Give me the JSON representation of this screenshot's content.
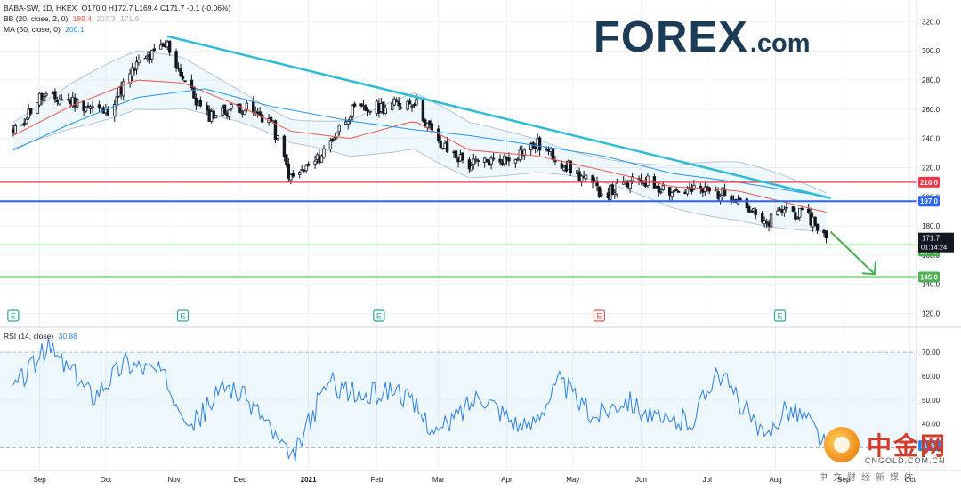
{
  "legend": {
    "symbol": "BABA-SW, 1D, HKEX",
    "ohlc": "O170.0 H172.7 L169.4 C171.7 -0.1 (-0.06%)",
    "bb_label": "BB (20, close, 2, 0)",
    "bb_values": [
      "189.4",
      "207.3",
      "171.6"
    ],
    "ma_label": "MA (50, close, 0)",
    "ma_value": "200.1",
    "rsi_label": "RSI (14, close)",
    "rsi_value": "30.88"
  },
  "logo": {
    "brand": "FOREX",
    "suffix": ".com"
  },
  "watermark": {
    "name": "中金网",
    "domain": "CNGOLD.COM.CN",
    "tagline": "中文财经新媒体"
  },
  "colors": {
    "up": "#26a69a",
    "down": "#ef5350",
    "candle_body": "#131722",
    "trendline": "#2bbcd8",
    "support_red": "#f23645",
    "support_blue": "#2962ff",
    "target_green": "#4caf50",
    "bb_basis": "#f05545",
    "ma": "#2196f3",
    "rsi_line": "#2a82e4"
  },
  "price_axis": {
    "ticks": [
      "320.0",
      "300.0",
      "280.0",
      "260.0",
      "240.0",
      "220.0",
      "200.0",
      "180.0",
      "160.0",
      "140.0",
      "120.0"
    ],
    "range": [
      113,
      330
    ]
  },
  "rsi_axis": {
    "ticks": [
      "70.00",
      "60.00",
      "50.00",
      "40.00",
      "30.00"
    ],
    "range": [
      22,
      76
    ]
  },
  "time_axis": [
    "Sep",
    "Oct",
    "Nov",
    "Dec",
    "2021",
    "Feb",
    "Mar",
    "Apr",
    "May",
    "Jun",
    "Jul",
    "Aug",
    "Sep",
    "Oct"
  ],
  "labels": {
    "resistance_210": "210.0",
    "resistance_197": "197.0",
    "last_price": "171.7",
    "countdown": "01:14:24",
    "target_167": "167.0",
    "target_145": "145.0"
  },
  "events": [
    "E",
    "E",
    "E",
    "E",
    "E"
  ],
  "chart_data": {
    "type": "line",
    "title": "BABA-SW, 1D, HKEX",
    "xlabel": "",
    "ylabel": "",
    "ylim": [
      113,
      330
    ],
    "series": [
      {
        "name": "BABA-SW close",
        "x": [
          "2020-08-20",
          "2020-09-01",
          "2020-09-15",
          "2020-10-01",
          "2020-10-15",
          "2020-10-29",
          "2020-11-05",
          "2020-11-15",
          "2020-12-01",
          "2020-12-15",
          "2020-12-24",
          "2021-01-05",
          "2021-01-20",
          "2021-02-05",
          "2021-02-18",
          "2021-03-01",
          "2021-03-15",
          "2021-04-01",
          "2021-04-15",
          "2021-05-01",
          "2021-05-15",
          "2021-06-01",
          "2021-06-15",
          "2021-07-01",
          "2021-07-15",
          "2021-07-27",
          "2021-08-05",
          "2021-08-18",
          "2021-08-24"
        ],
        "values": [
          243,
          268,
          266,
          258,
          290,
          304,
          282,
          255,
          262,
          252,
          212,
          225,
          258,
          262,
          266,
          236,
          222,
          226,
          236,
          218,
          202,
          212,
          204,
          204,
          200,
          180,
          192,
          184,
          171.7
        ]
      },
      {
        "name": "BB (20, close, 2, 0) basis",
        "x": [
          "2020-08-20",
          "2020-09-15",
          "2020-10-15",
          "2020-11-05",
          "2020-12-01",
          "2020-12-24",
          "2021-01-20",
          "2021-02-18",
          "2021-03-15",
          "2021-04-15",
          "2021-05-15",
          "2021-06-15",
          "2021-07-15",
          "2021-08-24"
        ],
        "values": [
          242,
          262,
          280,
          278,
          262,
          245,
          240,
          252,
          232,
          228,
          218,
          207,
          204,
          189.4
        ]
      },
      {
        "name": "MA (50, close, 0)",
        "x": [
          "2020-08-20",
          "2020-09-15",
          "2020-10-15",
          "2020-11-15",
          "2020-12-15",
          "2021-01-20",
          "2021-02-18",
          "2021-03-15",
          "2021-04-15",
          "2021-05-15",
          "2021-06-15",
          "2021-07-15",
          "2021-08-24"
        ],
        "values": [
          232,
          250,
          268,
          274,
          262,
          252,
          246,
          242,
          235,
          228,
          216,
          210,
          200.1
        ]
      },
      {
        "name": "RSI (14, close)",
        "x": [
          "2020-08-20",
          "2020-09-05",
          "2020-09-25",
          "2020-10-10",
          "2020-10-25",
          "2020-11-10",
          "2020-11-25",
          "2020-12-10",
          "2020-12-24",
          "2021-01-10",
          "2021-01-25",
          "2021-02-10",
          "2021-03-01",
          "2021-03-20",
          "2021-04-10",
          "2021-04-25",
          "2021-05-10",
          "2021-05-25",
          "2021-06-10",
          "2021-06-25",
          "2021-07-05",
          "2021-07-20",
          "2021-07-27",
          "2021-08-05",
          "2021-08-15",
          "2021-08-24"
        ],
        "values": [
          55,
          72,
          52,
          66,
          62,
          40,
          57,
          45,
          24,
          58,
          51,
          55,
          36,
          53,
          37,
          58,
          43,
          51,
          40,
          42,
          63,
          44,
          32,
          47,
          43,
          30.88
        ]
      }
    ],
    "trendline": {
      "from": [
        "2020-10-29",
        310
      ],
      "to": [
        "2021-08-26",
        199
      ]
    },
    "horizontal_levels": [
      210,
      197,
      167,
      145
    ],
    "forecast_arrow": {
      "from": [
        "2021-08-26",
        176
      ],
      "to": [
        "2021-09-15",
        147
      ]
    }
  }
}
